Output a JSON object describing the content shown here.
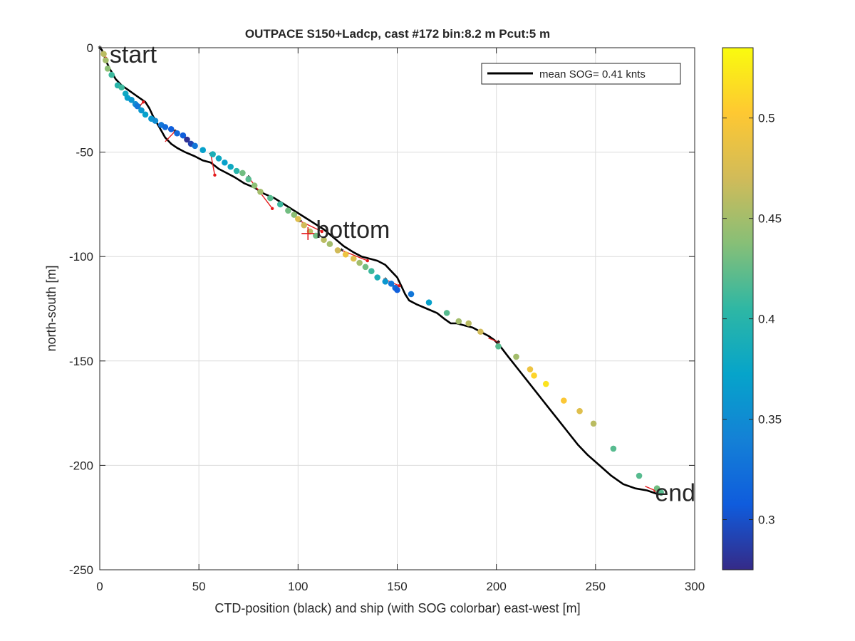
{
  "chart_data": {
    "type": "scatter",
    "title": "OUTPACE S150+Ladcp, cast #172 bin:8.2 m  Pcut:5 m",
    "xlabel": "CTD-position (black) and ship (with SOG colorbar) east-west [m]",
    "ylabel": "north-south [m]",
    "xlim": [
      0,
      300
    ],
    "ylim": [
      -250,
      0
    ],
    "xticks": [
      0,
      50,
      100,
      150,
      200,
      250,
      300
    ],
    "yticks": [
      0,
      -50,
      -100,
      -150,
      -200,
      -250
    ],
    "grid": true,
    "legend": {
      "entry": "mean SOG=  0.41 knts",
      "placement": "top-right"
    },
    "colorbar": {
      "range": [
        0.275,
        0.535
      ],
      "ticks": [
        0.3,
        0.35,
        0.4,
        0.45,
        0.5
      ],
      "colormap": "parula",
      "colors": [
        "#352a87",
        "#0f5cdd",
        "#1481d6",
        "#06a4ca",
        "#2eb7a4",
        "#87bf77",
        "#d1bb59",
        "#fec832",
        "#f9fb0e"
      ]
    },
    "annotations": [
      {
        "text": "start",
        "x": 5,
        "y": -3
      },
      {
        "text": "bottom",
        "x": 109,
        "y": -87
      },
      {
        "text": "end",
        "x": 280,
        "y": -213
      }
    ],
    "ctd_track": {
      "name": "mean SOG=  0.41 knts",
      "color": "#000000",
      "points": [
        [
          0,
          0
        ],
        [
          1,
          -1
        ],
        [
          2,
          -3
        ],
        [
          3,
          -6
        ],
        [
          5,
          -10
        ],
        [
          8,
          -15
        ],
        [
          11,
          -18
        ],
        [
          14,
          -20
        ],
        [
          17,
          -22
        ],
        [
          20,
          -24
        ],
        [
          23,
          -26
        ],
        [
          25,
          -29
        ],
        [
          27,
          -33
        ],
        [
          30,
          -38
        ],
        [
          33,
          -43
        ],
        [
          36,
          -46
        ],
        [
          39,
          -48
        ],
        [
          43,
          -50
        ],
        [
          48,
          -52
        ],
        [
          52,
          -54
        ],
        [
          56,
          -55
        ],
        [
          60,
          -58
        ],
        [
          64,
          -60
        ],
        [
          68,
          -62
        ],
        [
          73,
          -65
        ],
        [
          78,
          -67
        ],
        [
          83,
          -70
        ],
        [
          88,
          -72
        ],
        [
          93,
          -75
        ],
        [
          98,
          -78
        ],
        [
          103,
          -81
        ],
        [
          108,
          -84
        ],
        [
          113,
          -87
        ],
        [
          118,
          -91
        ],
        [
          123,
          -95
        ],
        [
          128,
          -98
        ],
        [
          132,
          -100
        ],
        [
          136,
          -101
        ],
        [
          140,
          -102
        ],
        [
          144,
          -104
        ],
        [
          147,
          -107
        ],
        [
          150,
          -110
        ],
        [
          152,
          -114
        ],
        [
          154,
          -118
        ],
        [
          156,
          -121
        ],
        [
          160,
          -123
        ],
        [
          165,
          -125
        ],
        [
          170,
          -127
        ],
        [
          174,
          -130
        ],
        [
          177,
          -132
        ],
        [
          180,
          -132
        ],
        [
          184,
          -133
        ],
        [
          188,
          -134
        ],
        [
          192,
          -136
        ],
        [
          196,
          -138
        ],
        [
          199,
          -140
        ],
        [
          202,
          -143
        ],
        [
          206,
          -148
        ],
        [
          211,
          -154
        ],
        [
          216,
          -160
        ],
        [
          221,
          -166
        ],
        [
          226,
          -172
        ],
        [
          231,
          -178
        ],
        [
          236,
          -184
        ],
        [
          241,
          -190
        ],
        [
          246,
          -195
        ],
        [
          252,
          -200
        ],
        [
          258,
          -205
        ],
        [
          264,
          -209
        ],
        [
          270,
          -211
        ],
        [
          276,
          -212
        ],
        [
          282,
          -214
        ]
      ]
    },
    "ship_segments": [
      [
        [
          1,
          -2
        ],
        [
          3,
          -5
        ]
      ],
      [
        [
          20,
          -28
        ],
        [
          22,
          -26
        ]
      ],
      [
        [
          33,
          -45
        ],
        [
          38,
          -40
        ]
      ],
      [
        [
          56,
          -51
        ],
        [
          58,
          -61
        ]
      ],
      [
        [
          75,
          -62
        ],
        [
          87,
          -77
        ]
      ],
      [
        [
          101,
          -83
        ],
        [
          112,
          -88
        ]
      ],
      [
        [
          122,
          -97
        ],
        [
          135,
          -102
        ]
      ],
      [
        [
          144,
          -111
        ],
        [
          151,
          -114
        ]
      ],
      [
        [
          196,
          -139
        ],
        [
          201,
          -141
        ]
      ],
      [
        [
          275,
          -210
        ],
        [
          280,
          -212
        ]
      ]
    ],
    "ship_fixes": [
      [
        0,
        0
      ],
      [
        20,
        -28
      ],
      [
        38,
        -40
      ],
      [
        56,
        -51
      ],
      [
        75,
        -62
      ],
      [
        101,
        -83
      ],
      [
        122,
        -97
      ],
      [
        144,
        -111
      ],
      [
        201,
        -141
      ],
      [
        283,
        -214
      ]
    ],
    "series": [
      {
        "name": "ship SOG",
        "points": [
          {
            "x": 2,
            "y": -3,
            "sog": 0.46
          },
          {
            "x": 3,
            "y": -6,
            "sog": 0.45
          },
          {
            "x": 4,
            "y": -10,
            "sog": 0.44
          },
          {
            "x": 6,
            "y": -13,
            "sog": 0.41
          },
          {
            "x": 9,
            "y": -18,
            "sog": 0.4
          },
          {
            "x": 11,
            "y": -19,
            "sog": 0.41
          },
          {
            "x": 13,
            "y": -22,
            "sog": 0.38
          },
          {
            "x": 14,
            "y": -24,
            "sog": 0.37
          },
          {
            "x": 16,
            "y": -25,
            "sog": 0.36
          },
          {
            "x": 18,
            "y": -27,
            "sog": 0.35
          },
          {
            "x": 19,
            "y": -28,
            "sog": 0.33
          },
          {
            "x": 21,
            "y": -30,
            "sog": 0.36
          },
          {
            "x": 23,
            "y": -32,
            "sog": 0.37
          },
          {
            "x": 26,
            "y": -34,
            "sog": 0.36
          },
          {
            "x": 28,
            "y": -35,
            "sog": 0.35
          },
          {
            "x": 31,
            "y": -37,
            "sog": 0.33
          },
          {
            "x": 33,
            "y": -38,
            "sog": 0.32
          },
          {
            "x": 36,
            "y": -39,
            "sog": 0.31
          },
          {
            "x": 39,
            "y": -41,
            "sog": 0.32
          },
          {
            "x": 42,
            "y": -42,
            "sog": 0.31
          },
          {
            "x": 44,
            "y": -44,
            "sog": 0.28
          },
          {
            "x": 46,
            "y": -46,
            "sog": 0.29
          },
          {
            "x": 48,
            "y": -47,
            "sog": 0.33
          },
          {
            "x": 52,
            "y": -49,
            "sog": 0.37
          },
          {
            "x": 57,
            "y": -51,
            "sog": 0.39
          },
          {
            "x": 60,
            "y": -53,
            "sog": 0.38
          },
          {
            "x": 63,
            "y": -55,
            "sog": 0.37
          },
          {
            "x": 66,
            "y": -57,
            "sog": 0.38
          },
          {
            "x": 69,
            "y": -59,
            "sog": 0.4
          },
          {
            "x": 72,
            "y": -60,
            "sog": 0.43
          },
          {
            "x": 75,
            "y": -63,
            "sog": 0.42
          },
          {
            "x": 78,
            "y": -66,
            "sog": 0.44
          },
          {
            "x": 81,
            "y": -69,
            "sog": 0.45
          },
          {
            "x": 86,
            "y": -72,
            "sog": 0.42
          },
          {
            "x": 91,
            "y": -75,
            "sog": 0.41
          },
          {
            "x": 95,
            "y": -78,
            "sog": 0.43
          },
          {
            "x": 98,
            "y": -80,
            "sog": 0.44
          },
          {
            "x": 100,
            "y": -82,
            "sog": 0.48
          },
          {
            "x": 103,
            "y": -85,
            "sog": 0.47
          },
          {
            "x": 106,
            "y": -88,
            "sog": 0.46
          },
          {
            "x": 109,
            "y": -90,
            "sog": 0.43
          },
          {
            "x": 113,
            "y": -92,
            "sog": 0.46
          },
          {
            "x": 116,
            "y": -94,
            "sog": 0.45
          },
          {
            "x": 120,
            "y": -97,
            "sog": 0.47
          },
          {
            "x": 124,
            "y": -99,
            "sog": 0.49
          },
          {
            "x": 128,
            "y": -101,
            "sog": 0.48
          },
          {
            "x": 131,
            "y": -103,
            "sog": 0.45
          },
          {
            "x": 134,
            "y": -105,
            "sog": 0.43
          },
          {
            "x": 137,
            "y": -107,
            "sog": 0.41
          },
          {
            "x": 140,
            "y": -110,
            "sog": 0.39
          },
          {
            "x": 144,
            "y": -112,
            "sog": 0.36
          },
          {
            "x": 147,
            "y": -113,
            "sog": 0.33
          },
          {
            "x": 149,
            "y": -115,
            "sog": 0.32
          },
          {
            "x": 150,
            "y": -116,
            "sog": 0.31
          },
          {
            "x": 157,
            "y": -118,
            "sog": 0.33
          },
          {
            "x": 166,
            "y": -122,
            "sog": 0.37
          },
          {
            "x": 175,
            "y": -127,
            "sog": 0.42
          },
          {
            "x": 181,
            "y": -131,
            "sog": 0.45
          },
          {
            "x": 186,
            "y": -132,
            "sog": 0.46
          },
          {
            "x": 192,
            "y": -136,
            "sog": 0.47
          },
          {
            "x": 201,
            "y": -143,
            "sog": 0.42
          },
          {
            "x": 210,
            "y": -148,
            "sog": 0.45
          },
          {
            "x": 217,
            "y": -154,
            "sog": 0.49
          },
          {
            "x": 219,
            "y": -157,
            "sog": 0.51
          },
          {
            "x": 225,
            "y": -161,
            "sog": 0.52
          },
          {
            "x": 234,
            "y": -169,
            "sog": 0.5
          },
          {
            "x": 242,
            "y": -174,
            "sog": 0.48
          },
          {
            "x": 249,
            "y": -180,
            "sog": 0.46
          },
          {
            "x": 259,
            "y": -192,
            "sog": 0.42
          },
          {
            "x": 272,
            "y": -205,
            "sog": 0.42
          },
          {
            "x": 281,
            "y": -211,
            "sog": 0.43
          },
          {
            "x": 283,
            "y": -213,
            "sog": 0.42
          }
        ]
      }
    ]
  }
}
